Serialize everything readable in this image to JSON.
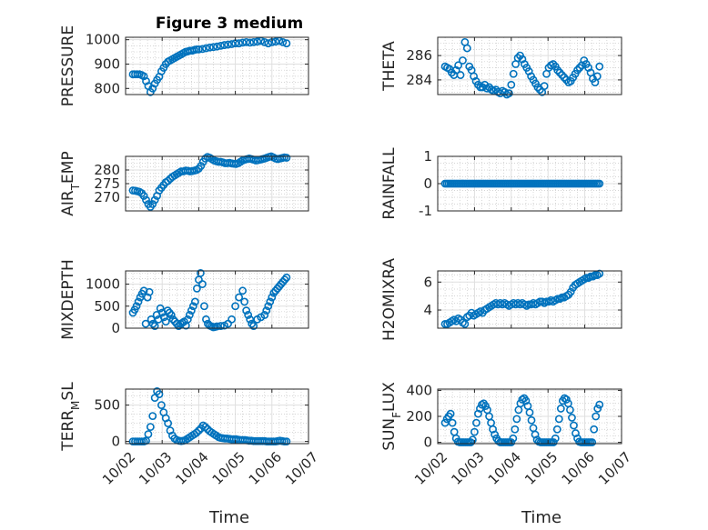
{
  "title": "Figure 3 medium",
  "xlabel": "Time",
  "colors": {
    "marker": "#0072BD",
    "axes": "#262626",
    "grid": "#dfdfdf"
  },
  "xticks": [
    "10/02",
    "10/03",
    "10/04",
    "10/05",
    "10/06",
    "10/07"
  ],
  "chart_data": [
    {
      "type": "scatter",
      "ylabel": "PRESSURE",
      "xlim": [
        0,
        5
      ],
      "ylim": [
        775,
        1010
      ],
      "yticks": [
        800,
        900,
        1000
      ],
      "grid": true,
      "marker": "open-circle",
      "x": [
        0.2,
        0.26,
        0.32,
        0.38,
        0.44,
        0.5,
        0.56,
        0.62,
        0.68,
        0.74,
        0.8,
        0.86,
        0.92,
        0.98,
        1.04,
        1.1,
        1.16,
        1.22,
        1.28,
        1.34,
        1.4,
        1.46,
        1.52,
        1.58,
        1.64,
        1.7,
        1.76,
        1.82,
        1.88,
        1.94,
        2.0,
        2.1,
        2.2,
        2.3,
        2.4,
        2.5,
        2.6,
        2.7,
        2.8,
        2.9,
        3.0,
        3.1,
        3.2,
        3.3,
        3.4,
        3.5,
        3.6,
        3.7,
        3.8,
        3.9,
        4.0,
        4.1,
        4.2,
        4.3,
        4.4
      ],
      "y": [
        858,
        858,
        858,
        858,
        855,
        850,
        830,
        810,
        785,
        800,
        820,
        835,
        848,
        870,
        885,
        900,
        910,
        915,
        920,
        925,
        930,
        935,
        940,
        945,
        950,
        952,
        955,
        955,
        958,
        960,
        960,
        962,
        965,
        968,
        970,
        972,
        975,
        978,
        980,
        982,
        985,
        985,
        988,
        990,
        988,
        990,
        992,
        995,
        990,
        985,
        990,
        992,
        995,
        990,
        985
      ]
    },
    {
      "type": "scatter",
      "ylabel": "THETA",
      "xlim": [
        0,
        5
      ],
      "ylim": [
        282.8,
        287.5
      ],
      "yticks": [
        284,
        286
      ],
      "grid": true,
      "marker": "open-circle",
      "x": [
        0.2,
        0.26,
        0.32,
        0.38,
        0.44,
        0.5,
        0.56,
        0.62,
        0.68,
        0.74,
        0.8,
        0.86,
        0.92,
        0.98,
        1.04,
        1.1,
        1.16,
        1.22,
        1.28,
        1.34,
        1.4,
        1.46,
        1.52,
        1.58,
        1.64,
        1.7,
        1.76,
        1.82,
        1.88,
        1.94,
        2.0,
        2.06,
        2.12,
        2.18,
        2.24,
        2.3,
        2.36,
        2.42,
        2.48,
        2.54,
        2.6,
        2.66,
        2.72,
        2.78,
        2.84,
        2.9,
        2.96,
        3.02,
        3.08,
        3.14,
        3.2,
        3.26,
        3.32,
        3.38,
        3.44,
        3.5,
        3.56,
        3.62,
        3.68,
        3.74,
        3.8,
        3.86,
        3.92,
        3.98,
        4.04,
        4.1,
        4.16,
        4.22,
        4.28,
        4.34,
        4.4
      ],
      "y": [
        285.1,
        285.0,
        284.9,
        284.6,
        284.4,
        284.8,
        285.2,
        284.4,
        285.6,
        287.1,
        286.6,
        285.1,
        284.8,
        284.3,
        283.9,
        283.6,
        283.4,
        283.4,
        283.6,
        283.3,
        283.4,
        283.2,
        283.1,
        283.2,
        283.0,
        282.9,
        283.1,
        283.0,
        282.8,
        282.9,
        283.6,
        284.5,
        285.3,
        285.8,
        286.0,
        285.7,
        285.3,
        285.0,
        284.7,
        284.3,
        284.0,
        283.7,
        283.4,
        283.2,
        283.0,
        283.5,
        284.5,
        285.0,
        285.2,
        285.3,
        285.1,
        284.8,
        284.6,
        284.4,
        284.2,
        284.0,
        283.8,
        283.9,
        284.2,
        284.5,
        284.8,
        285.0,
        285.2,
        285.6,
        285.3,
        285.0,
        284.6,
        284.1,
        283.8,
        284.3,
        285.1
      ]
    },
    {
      "type": "scatter",
      "ylabel": "AIR_TEMP",
      "xlim": [
        0,
        5
      ],
      "ylim": [
        265,
        285
      ],
      "yticks": [
        270,
        275,
        280
      ],
      "grid": true,
      "marker": "open-circle",
      "x": [
        0.2,
        0.26,
        0.32,
        0.38,
        0.44,
        0.5,
        0.56,
        0.62,
        0.68,
        0.74,
        0.8,
        0.86,
        0.92,
        0.98,
        1.04,
        1.1,
        1.16,
        1.22,
        1.28,
        1.34,
        1.4,
        1.46,
        1.52,
        1.58,
        1.64,
        1.7,
        1.76,
        1.82,
        1.88,
        1.94,
        2.0,
        2.06,
        2.12,
        2.18,
        2.24,
        2.3,
        2.36,
        2.42,
        2.48,
        2.54,
        2.6,
        2.66,
        2.72,
        2.78,
        2.84,
        2.9,
        2.96,
        3.02,
        3.08,
        3.14,
        3.2,
        3.26,
        3.32,
        3.38,
        3.44,
        3.5,
        3.56,
        3.62,
        3.68,
        3.74,
        3.8,
        3.86,
        3.92,
        3.98,
        4.04,
        4.1,
        4.16,
        4.22,
        4.28,
        4.34,
        4.4
      ],
      "y": [
        272.5,
        272.4,
        272.2,
        272.0,
        271.5,
        270.5,
        269.0,
        267.5,
        266.5,
        267.5,
        269.0,
        270.5,
        272.5,
        273.5,
        274.5,
        275.5,
        276.0,
        276.8,
        277.5,
        278.0,
        278.5,
        279.0,
        279.5,
        279.5,
        279.8,
        279.7,
        279.5,
        279.6,
        279.8,
        280.0,
        280.5,
        281.5,
        283.0,
        284.2,
        284.8,
        284.5,
        284.0,
        283.5,
        283.2,
        283.0,
        283.0,
        282.8,
        282.5,
        282.5,
        282.6,
        282.4,
        282.3,
        282.2,
        282.5,
        283.0,
        283.5,
        283.8,
        284.0,
        284.2,
        284.0,
        283.8,
        283.5,
        283.6,
        283.8,
        284.0,
        284.2,
        284.5,
        284.8,
        285.0,
        284.6,
        284.2,
        284.0,
        284.2,
        284.4,
        284.6,
        284.5
      ]
    },
    {
      "type": "scatter",
      "ylabel": "RAINFALL",
      "xlim": [
        0,
        5
      ],
      "ylim": [
        -1,
        1
      ],
      "yticks": [
        -1,
        0,
        1
      ],
      "grid": true,
      "marker": "open-circle",
      "x_range": [
        0.2,
        4.4
      ],
      "count": 85,
      "value": 0
    },
    {
      "type": "scatter",
      "ylabel": "MIXDEPTH",
      "xlim": [
        0,
        5
      ],
      "ylim": [
        0,
        1300
      ],
      "yticks": [
        0,
        500,
        1000
      ],
      "grid": true,
      "marker": "open-circle",
      "x": [
        0.2,
        0.25,
        0.3,
        0.35,
        0.4,
        0.45,
        0.5,
        0.55,
        0.6,
        0.65,
        0.7,
        0.75,
        0.8,
        0.85,
        0.9,
        0.95,
        1.0,
        1.05,
        1.1,
        1.15,
        1.2,
        1.25,
        1.3,
        1.35,
        1.4,
        1.45,
        1.5,
        1.55,
        1.6,
        1.65,
        1.7,
        1.75,
        1.8,
        1.85,
        1.9,
        1.95,
        2.0,
        2.05,
        2.1,
        2.15,
        2.2,
        2.25,
        2.3,
        2.35,
        2.4,
        2.45,
        2.5,
        2.6,
        2.7,
        2.8,
        2.9,
        3.0,
        3.1,
        3.2,
        3.25,
        3.3,
        3.35,
        3.4,
        3.45,
        3.5,
        3.6,
        3.7,
        3.8,
        3.85,
        3.9,
        3.95,
        4.0,
        4.05,
        4.1,
        4.15,
        4.2,
        4.25,
        4.3,
        4.35,
        4.4
      ],
      "y": [
        350,
        420,
        500,
        600,
        700,
        780,
        850,
        100,
        700,
        820,
        200,
        100,
        50,
        300,
        200,
        450,
        350,
        250,
        150,
        400,
        350,
        300,
        200,
        150,
        100,
        50,
        100,
        120,
        150,
        60,
        200,
        300,
        400,
        500,
        600,
        900,
        1100,
        1250,
        1000,
        500,
        200,
        100,
        60,
        40,
        20,
        30,
        40,
        50,
        60,
        100,
        200,
        500,
        700,
        850,
        600,
        400,
        300,
        200,
        100,
        50,
        200,
        250,
        300,
        400,
        500,
        600,
        700,
        800,
        850,
        900,
        950,
        1000,
        1050,
        1100,
        1150
      ]
    },
    {
      "type": "scatter",
      "ylabel": "H2OMIXRA",
      "xlim": [
        0,
        5
      ],
      "ylim": [
        2.7,
        6.8
      ],
      "yticks": [
        4,
        6
      ],
      "grid": true,
      "marker": "open-circle",
      "x": [
        0.2,
        0.26,
        0.32,
        0.38,
        0.44,
        0.5,
        0.56,
        0.62,
        0.68,
        0.74,
        0.8,
        0.86,
        0.92,
        0.98,
        1.04,
        1.1,
        1.16,
        1.22,
        1.28,
        1.34,
        1.4,
        1.46,
        1.52,
        1.58,
        1.64,
        1.7,
        1.76,
        1.82,
        1.88,
        1.94,
        2.0,
        2.06,
        2.12,
        2.18,
        2.24,
        2.3,
        2.36,
        2.42,
        2.48,
        2.54,
        2.6,
        2.66,
        2.72,
        2.78,
        2.84,
        2.9,
        2.96,
        3.02,
        3.08,
        3.14,
        3.2,
        3.26,
        3.32,
        3.38,
        3.44,
        3.5,
        3.56,
        3.62,
        3.68,
        3.74,
        3.8,
        3.86,
        3.92,
        3.98,
        4.04,
        4.1,
        4.16,
        4.22,
        4.28,
        4.34,
        4.4
      ],
      "y": [
        3.0,
        3.0,
        3.1,
        3.2,
        3.3,
        3.2,
        3.4,
        3.3,
        3.1,
        3.0,
        3.5,
        3.6,
        3.8,
        3.6,
        3.7,
        3.8,
        3.9,
        3.8,
        4.0,
        4.1,
        4.2,
        4.3,
        4.4,
        4.5,
        4.4,
        4.5,
        4.4,
        4.5,
        4.4,
        4.3,
        4.4,
        4.5,
        4.4,
        4.5,
        4.4,
        4.5,
        4.4,
        4.3,
        4.4,
        4.4,
        4.5,
        4.4,
        4.5,
        4.6,
        4.6,
        4.5,
        4.6,
        4.6,
        4.7,
        4.6,
        4.7,
        4.8,
        4.8,
        4.9,
        4.9,
        5.0,
        5.1,
        5.3,
        5.6,
        5.8,
        5.9,
        6.0,
        6.1,
        6.2,
        6.3,
        6.3,
        6.4,
        6.4,
        6.5,
        6.5,
        6.6
      ]
    },
    {
      "type": "scatter",
      "ylabel": "TERR_MSL",
      "xlim": [
        0,
        5
      ],
      "ylim": [
        -30,
        720
      ],
      "yticks": [
        0,
        500
      ],
      "grid": true,
      "marker": "open-circle",
      "x": [
        0.2,
        0.26,
        0.32,
        0.38,
        0.44,
        0.5,
        0.56,
        0.62,
        0.68,
        0.74,
        0.8,
        0.86,
        0.92,
        0.98,
        1.04,
        1.1,
        1.16,
        1.22,
        1.28,
        1.34,
        1.4,
        1.46,
        1.52,
        1.58,
        1.64,
        1.7,
        1.76,
        1.82,
        1.88,
        1.94,
        2.0,
        2.06,
        2.12,
        2.18,
        2.24,
        2.3,
        2.36,
        2.42,
        2.48,
        2.54,
        2.6,
        2.66,
        2.72,
        2.78,
        2.84,
        2.9,
        2.96,
        3.02,
        3.08,
        3.14,
        3.2,
        3.26,
        3.32,
        3.38,
        3.44,
        3.5,
        3.56,
        3.62,
        3.68,
        3.74,
        3.8,
        3.86,
        3.92,
        3.98,
        4.04,
        4.1,
        4.16,
        4.22,
        4.28,
        4.34,
        4.4
      ],
      "y": [
        0,
        0,
        0,
        0,
        0,
        0,
        10,
        100,
        200,
        350,
        600,
        690,
        650,
        500,
        400,
        320,
        250,
        150,
        80,
        40,
        20,
        10,
        5,
        10,
        20,
        40,
        60,
        80,
        100,
        120,
        150,
        180,
        220,
        200,
        170,
        140,
        120,
        100,
        80,
        60,
        50,
        45,
        40,
        40,
        35,
        30,
        30,
        30,
        25,
        20,
        20,
        20,
        15,
        10,
        10,
        5,
        5,
        5,
        5,
        5,
        5,
        0,
        0,
        0,
        0,
        0,
        5,
        10,
        5,
        0,
        0
      ]
    },
    {
      "type": "scatter",
      "ylabel": "SUN_FLUX",
      "xlim": [
        0,
        5
      ],
      "ylim": [
        -10,
        410
      ],
      "yticks": [
        0,
        200,
        400
      ],
      "grid": true,
      "marker": "open-circle",
      "x": [
        0.2,
        0.25,
        0.3,
        0.35,
        0.4,
        0.45,
        0.5,
        0.55,
        0.6,
        0.65,
        0.7,
        0.75,
        0.8,
        0.85,
        0.9,
        0.95,
        1.0,
        1.05,
        1.1,
        1.15,
        1.2,
        1.25,
        1.3,
        1.35,
        1.4,
        1.45,
        1.5,
        1.55,
        1.6,
        1.65,
        1.7,
        1.75,
        1.8,
        1.85,
        1.9,
        1.95,
        2.0,
        2.05,
        2.1,
        2.15,
        2.2,
        2.25,
        2.3,
        2.35,
        2.4,
        2.45,
        2.5,
        2.55,
        2.6,
        2.65,
        2.7,
        2.75,
        2.8,
        2.85,
        2.9,
        2.95,
        3.0,
        3.05,
        3.1,
        3.15,
        3.2,
        3.25,
        3.3,
        3.35,
        3.4,
        3.45,
        3.5,
        3.55,
        3.6,
        3.65,
        3.7,
        3.75,
        3.8,
        3.85,
        3.9,
        3.95,
        4.0,
        4.05,
        4.1,
        4.15,
        4.2,
        4.25,
        4.3,
        4.35,
        4.4
      ],
      "y": [
        150,
        180,
        200,
        220,
        150,
        80,
        30,
        5,
        0,
        0,
        0,
        0,
        0,
        0,
        0,
        20,
        80,
        150,
        220,
        260,
        290,
        300,
        280,
        250,
        200,
        150,
        100,
        60,
        30,
        10,
        0,
        0,
        0,
        0,
        0,
        0,
        0,
        30,
        100,
        180,
        250,
        300,
        330,
        340,
        320,
        280,
        230,
        170,
        110,
        60,
        20,
        5,
        0,
        0,
        0,
        0,
        0,
        0,
        0,
        0,
        30,
        100,
        180,
        260,
        320,
        340,
        330,
        300,
        250,
        190,
        130,
        70,
        30,
        5,
        0,
        0,
        0,
        0,
        0,
        0,
        0,
        100,
        200,
        260,
        290
      ]
    }
  ]
}
